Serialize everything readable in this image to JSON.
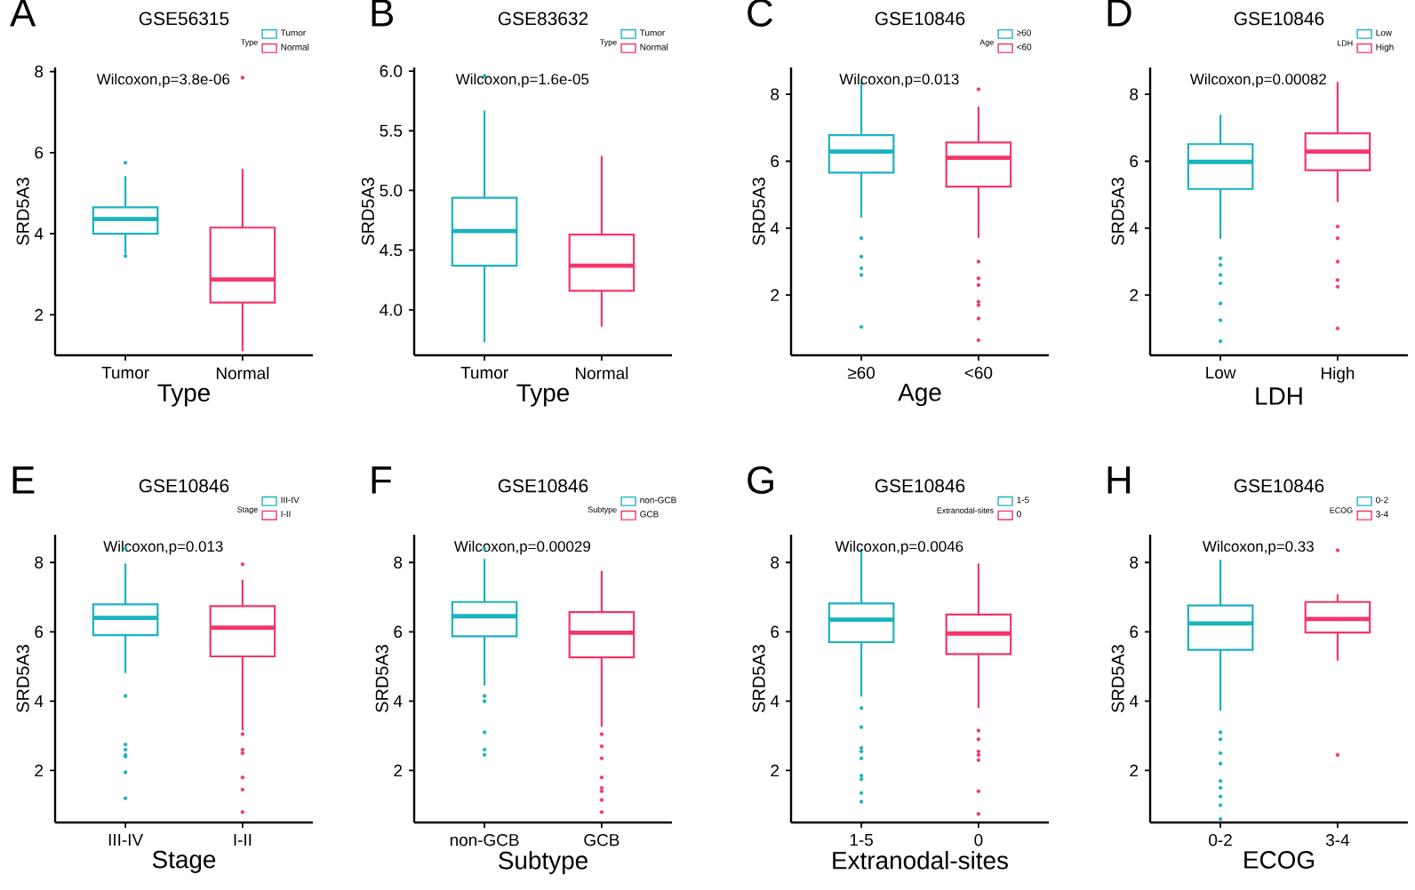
{
  "chart_data": [
    {
      "type": "box",
      "title": "GSE56315",
      "xlabel": "Type",
      "ylabel": "SRD5A3",
      "legend_title": "Type",
      "legend": "top right",
      "categories": [
        "Tumor",
        "Normal"
      ],
      "series": [
        {
          "name": "Tumor",
          "color": "#1ab3bf",
          "boxes": [
            {
              "low": 3.5,
              "q1": 4.0,
              "median": 4.36,
              "q3": 4.65,
              "high": 5.42,
              "outliers": [
                5.75,
                3.45
              ]
            },
            null
          ]
        },
        {
          "name": "Normal",
          "color": "#f3366a",
          "boxes": [
            null,
            {
              "low": 1.1,
              "q1": 2.3,
              "median": 2.87,
              "q3": 4.15,
              "high": 5.6,
              "outliers": [
                7.85
              ]
            }
          ]
        }
      ],
      "ylim": [
        1.0,
        8.1
      ],
      "yticks": [
        2,
        4,
        6,
        8
      ],
      "annotations": [
        "A",
        "Wilcoxon,p=3.8e-06"
      ]
    },
    {
      "type": "box",
      "title": "GSE83632",
      "xlabel": "Type",
      "ylabel": "SRD5A3",
      "legend_title": "Type",
      "legend": "top right",
      "categories": [
        "Tumor",
        "Normal"
      ],
      "series": [
        {
          "name": "Tumor",
          "color": "#1ab3bf",
          "boxes": [
            {
              "low": 3.73,
              "q1": 4.37,
              "median": 4.66,
              "q3": 4.94,
              "high": 5.67,
              "outliers": [
                5.96
              ]
            },
            null
          ]
        },
        {
          "name": "Normal",
          "color": "#f3366a",
          "boxes": [
            null,
            {
              "low": 3.86,
              "q1": 4.16,
              "median": 4.37,
              "q3": 4.63,
              "high": 5.29
            }
          ]
        }
      ],
      "ylim": [
        3.62,
        6.03
      ],
      "yticks": [
        {
          "value": 4,
          "label": "4.0"
        },
        {
          "value": 4.5,
          "label": "4.5"
        },
        {
          "value": 5,
          "label": "5.0"
        },
        {
          "value": 5.5,
          "label": "5.5"
        },
        {
          "value": 6,
          "label": "6.0"
        }
      ],
      "annotations": [
        "B",
        "Wilcoxon,p=1.6e-05"
      ]
    },
    {
      "type": "box",
      "title": "GSE10846",
      "xlabel": "Age",
      "ylabel": "SRD5A3",
      "legend_title": "Age",
      "legend": "top right",
      "categories": [
        "≥60",
        "<60"
      ],
      "series": [
        {
          "name": "≥60",
          "color": "#1ab3bf",
          "boxes": [
            {
              "low": 4.32,
              "q1": 5.66,
              "median": 6.29,
              "q3": 6.78,
              "high": 8.37,
              "outliers": [
                1.05,
                2.6,
                2.8,
                3.15,
                3.7
              ]
            },
            null
          ]
        },
        {
          "name": "<60",
          "color": "#f3366a",
          "boxes": [
            null,
            {
              "low": 3.71,
              "q1": 5.24,
              "median": 6.1,
              "q3": 6.56,
              "high": 7.63,
              "outliers": [
                0.65,
                1.3,
                1.7,
                1.8,
                2.3,
                2.5,
                3.0,
                8.15
              ]
            }
          ]
        }
      ],
      "ylim": [
        0.2,
        8.8
      ],
      "yticks": [
        2,
        4,
        6,
        8
      ],
      "annotations": [
        "C",
        "Wilcoxon,p=0.013"
      ]
    },
    {
      "type": "box",
      "title": "GSE10846",
      "xlabel": "LDH",
      "ylabel": "SRD5A3",
      "legend_title": "LDH",
      "legend": "top right",
      "categories": [
        "Low",
        "High"
      ],
      "series": [
        {
          "name": "Low",
          "color": "#1ab3bf",
          "boxes": [
            {
              "low": 3.68,
              "q1": 5.17,
              "median": 5.98,
              "q3": 6.51,
              "high": 7.39,
              "outliers": [
                0.62,
                1.25,
                1.75,
                2.35,
                2.6,
                2.9,
                3.1
              ]
            },
            null
          ]
        },
        {
          "name": "High",
          "color": "#f3366a",
          "boxes": [
            null,
            {
              "low": 4.78,
              "q1": 5.73,
              "median": 6.29,
              "q3": 6.83,
              "high": 8.37,
              "outliers": [
                1.0,
                2.25,
                2.45,
                3.0,
                3.7,
                4.05
              ]
            }
          ]
        }
      ],
      "ylim": [
        0.2,
        8.8
      ],
      "yticks": [
        2,
        4,
        6,
        8
      ],
      "annotations": [
        "D",
        "Wilcoxon,p=0.00082"
      ]
    },
    {
      "type": "box",
      "title": "GSE10846",
      "xlabel": "Stage",
      "ylabel": "SRD5A3",
      "legend_title": "Stage",
      "legend": "top right",
      "categories": [
        "III-IV",
        "I-II"
      ],
      "series": [
        {
          "name": "III-IV",
          "color": "#1ab3bf",
          "boxes": [
            {
              "low": 4.81,
              "q1": 5.9,
              "median": 6.4,
              "q3": 6.79,
              "high": 7.97,
              "outliers": [
                1.2,
                1.95,
                2.4,
                2.45,
                2.6,
                2.75,
                4.15,
                8.4
              ]
            },
            null
          ]
        },
        {
          "name": "I-II",
          "color": "#f3366a",
          "boxes": [
            null,
            {
              "low": 3.16,
              "q1": 5.29,
              "median": 6.12,
              "q3": 6.74,
              "high": 7.5,
              "outliers": [
                0.8,
                1.45,
                1.8,
                2.5,
                2.6,
                3.05,
                7.95
              ]
            }
          ]
        }
      ],
      "ylim": [
        0.5,
        8.8
      ],
      "yticks": [
        2,
        4,
        6,
        8
      ],
      "annotations": [
        "E",
        "Wilcoxon,p=0.013"
      ]
    },
    {
      "type": "box",
      "title": "GSE10846",
      "xlabel": "Subtype",
      "ylabel": "SRD5A3",
      "legend_title": "Subtype",
      "legend": "top right",
      "categories": [
        "non-GCB",
        "GCB"
      ],
      "series": [
        {
          "name": "non-GCB",
          "color": "#1ab3bf",
          "boxes": [
            {
              "low": 4.45,
              "q1": 5.87,
              "median": 6.45,
              "q3": 6.86,
              "high": 8.1,
              "outliers": [
                2.45,
                2.6,
                3.1,
                4.0,
                4.15,
                8.4
              ]
            },
            null
          ]
        },
        {
          "name": "GCB",
          "color": "#f3366a",
          "boxes": [
            null,
            {
              "low": 3.26,
              "q1": 5.26,
              "median": 5.97,
              "q3": 6.57,
              "high": 7.76,
              "outliers": [
                0.8,
                1.15,
                1.4,
                1.5,
                1.8,
                2.35,
                2.7,
                3.05
              ]
            }
          ]
        }
      ],
      "ylim": [
        0.5,
        8.8
      ],
      "yticks": [
        2,
        4,
        6,
        8
      ],
      "annotations": [
        "F",
        "Wilcoxon,p=0.00029"
      ]
    },
    {
      "type": "box",
      "title": "GSE10846",
      "xlabel": "Extranodal-sites",
      "ylabel": "SRD5A3",
      "legend_title": "Extranodal-sites",
      "legend": "top right",
      "categories": [
        "1-5",
        "0"
      ],
      "series": [
        {
          "name": "1-5",
          "color": "#1ab3bf",
          "boxes": [
            {
              "low": 4.13,
              "q1": 5.7,
              "median": 6.35,
              "q3": 6.82,
              "high": 8.39,
              "outliers": [
                1.1,
                1.35,
                1.75,
                1.85,
                2.35,
                2.55,
                2.65,
                3.25,
                3.8
              ]
            },
            null
          ]
        },
        {
          "name": "0",
          "color": "#f3366a",
          "boxes": [
            null,
            {
              "low": 3.8,
              "q1": 5.36,
              "median": 5.95,
              "q3": 6.5,
              "high": 7.97,
              "outliers": [
                0.75,
                1.4,
                2.3,
                2.45,
                2.55,
                2.9,
                3.15
              ]
            }
          ]
        }
      ],
      "ylim": [
        0.5,
        8.8
      ],
      "yticks": [
        2,
        4,
        6,
        8
      ],
      "annotations": [
        "G",
        "Wilcoxon,p=0.0046"
      ]
    },
    {
      "type": "box",
      "title": "GSE10846",
      "xlabel": "ECOG",
      "ylabel": "SRD5A3",
      "legend_title": "ECOG",
      "legend": "top right",
      "categories": [
        "0-2",
        "3-4"
      ],
      "series": [
        {
          "name": "0-2",
          "color": "#1ab3bf",
          "boxes": [
            {
              "low": 3.72,
              "q1": 5.48,
              "median": 6.24,
              "q3": 6.76,
              "high": 8.08,
              "outliers": [
                0.6,
                1.0,
                1.25,
                1.5,
                1.7,
                2.2,
                2.5,
                2.9,
                3.1
              ]
            },
            null
          ]
        },
        {
          "name": "3-4",
          "color": "#f3366a",
          "boxes": [
            null,
            {
              "low": 5.17,
              "q1": 5.98,
              "median": 6.37,
              "q3": 6.86,
              "high": 7.08,
              "outliers": [
                2.45,
                8.35
              ]
            }
          ]
        }
      ],
      "ylim": [
        0.5,
        8.8
      ],
      "yticks": [
        2,
        4,
        6,
        8
      ],
      "annotations": [
        "H",
        "Wilcoxon,p=0.33"
      ]
    }
  ]
}
